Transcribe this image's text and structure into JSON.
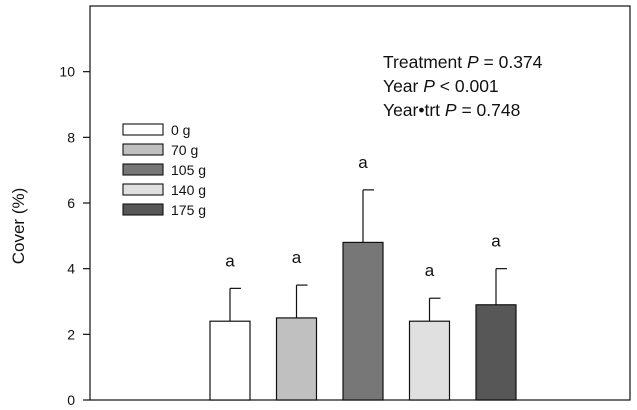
{
  "chart_data": {
    "type": "bar",
    "title": "",
    "xlabel": "",
    "ylabel": "Cover (%)",
    "ylim": [
      0,
      12
    ],
    "yticks": [
      0,
      2,
      4,
      6,
      8,
      10
    ],
    "grid": false,
    "legend_position": "upper-left",
    "categories": [
      "0 g",
      "70 g",
      "105 g",
      "140 g",
      "175 g"
    ],
    "values": [
      2.4,
      2.5,
      4.8,
      2.4,
      2.9
    ],
    "error": [
      1.0,
      1.0,
      1.6,
      0.7,
      1.1
    ],
    "labels": [
      "a",
      "a",
      "a",
      "a",
      "a"
    ],
    "colors": [
      "#ffffff",
      "#c0c0c0",
      "#777777",
      "#e0e0e0",
      "#575757"
    ],
    "annotations": [
      {
        "prefix": "Treatment ",
        "italic": "P",
        "suffix": " = 0.374"
      },
      {
        "prefix": "Year ",
        "italic": "P",
        "suffix": " < 0.001"
      },
      {
        "prefix": "Year•trt ",
        "italic": "P",
        "suffix": " = 0.748"
      }
    ]
  }
}
